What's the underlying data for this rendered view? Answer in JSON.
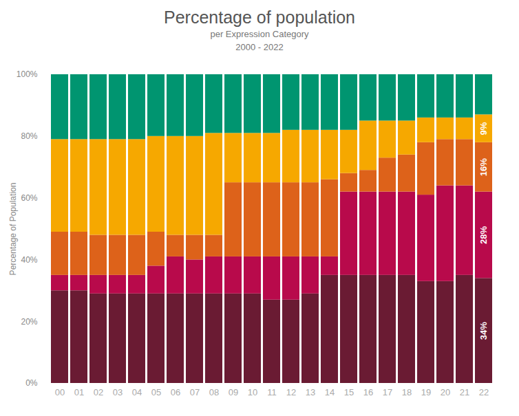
{
  "chart_data": {
    "type": "bar",
    "title": "Percentage of population",
    "subtitle": [
      "per Expression Category",
      "2000 - 2022"
    ],
    "y_label": "Percentage of Population",
    "stacked": true,
    "grid": false,
    "data_labels": true,
    "categories": [
      "00",
      "01",
      "02",
      "03",
      "04",
      "05",
      "06",
      "07",
      "08",
      "09",
      "10",
      "11",
      "12",
      "13",
      "14",
      "15",
      "16",
      "17",
      "18",
      "19",
      "20",
      "21",
      "22"
    ],
    "ylim": [
      0,
      100
    ],
    "yticks": [
      {
        "value": 0,
        "label": "0%"
      },
      {
        "value": 20,
        "label": "20%"
      },
      {
        "value": 40,
        "label": "40%"
      },
      {
        "value": 60,
        "label": "60%"
      },
      {
        "value": 80,
        "label": "80%"
      },
      {
        "value": 100,
        "label": "100%"
      }
    ],
    "series": [
      {
        "color": "#6a1b33",
        "values": [
          30,
          30,
          29,
          29,
          29,
          29,
          29,
          29,
          29,
          29,
          29,
          27,
          27,
          29,
          35,
          35,
          35,
          35,
          35,
          33,
          33,
          35,
          34
        ],
        "value_labels": [
          null,
          null,
          null,
          null,
          null,
          null,
          null,
          null,
          null,
          null,
          null,
          null,
          null,
          null,
          null,
          null,
          null,
          null,
          null,
          null,
          null,
          null,
          "34%"
        ]
      },
      {
        "color": "#b80a4b",
        "values": [
          5,
          5,
          6,
          6,
          6,
          9,
          12,
          11,
          12,
          12,
          12,
          14,
          14,
          12,
          6,
          27,
          27,
          27,
          27,
          28,
          31,
          29,
          28
        ],
        "value_labels": [
          null,
          null,
          null,
          null,
          null,
          null,
          null,
          null,
          null,
          null,
          null,
          null,
          null,
          null,
          null,
          null,
          null,
          null,
          null,
          null,
          null,
          null,
          "28%"
        ]
      },
      {
        "color": "#dd621a",
        "values": [
          14,
          14,
          13,
          13,
          13,
          11,
          7,
          8,
          7,
          24,
          24,
          24,
          24,
          24,
          25,
          6,
          7,
          11,
          12,
          17,
          15,
          15,
          16
        ],
        "value_labels": [
          null,
          null,
          null,
          null,
          null,
          null,
          null,
          null,
          null,
          null,
          null,
          null,
          null,
          null,
          null,
          null,
          null,
          null,
          null,
          null,
          null,
          null,
          "16%"
        ]
      },
      {
        "color": "#f6a800",
        "values": [
          30,
          30,
          31,
          31,
          31,
          31,
          32,
          32,
          33,
          16,
          16,
          16,
          17,
          17,
          16,
          14,
          16,
          12,
          11,
          8,
          7,
          7,
          9
        ],
        "value_labels": [
          null,
          null,
          null,
          null,
          null,
          null,
          null,
          null,
          null,
          null,
          null,
          null,
          null,
          null,
          null,
          null,
          null,
          null,
          null,
          null,
          null,
          null,
          "9%"
        ]
      },
      {
        "color": "#009570",
        "values": [
          21,
          21,
          21,
          21,
          21,
          20,
          20,
          20,
          19,
          19,
          19,
          19,
          18,
          18,
          18,
          18,
          15,
          15,
          15,
          14,
          14,
          14,
          13
        ]
      }
    ]
  }
}
